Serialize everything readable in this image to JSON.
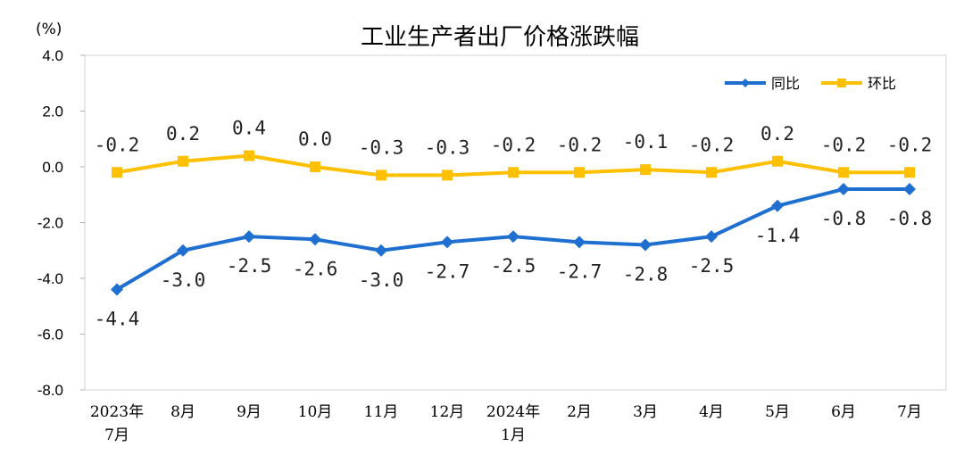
{
  "chart_data": {
    "type": "line",
    "title": "工业生产者出厂价格涨跌幅",
    "unit_label": "(%)",
    "categories": [
      [
        "2023年",
        "7月"
      ],
      [
        "8月"
      ],
      [
        "9月"
      ],
      [
        "10月"
      ],
      [
        "11月"
      ],
      [
        "12月"
      ],
      [
        "2024年",
        "1月"
      ],
      [
        "2月"
      ],
      [
        "3月"
      ],
      [
        "4月"
      ],
      [
        "5月"
      ],
      [
        "6月"
      ],
      [
        "7月"
      ]
    ],
    "ylim": [
      -8.0,
      4.0
    ],
    "yticks": [
      "4.0",
      "2.0",
      "0.0",
      "-2.0",
      "-4.0",
      "-6.0",
      "-8.0"
    ],
    "ytick_values": [
      4,
      2,
      0,
      -2,
      -4,
      -6,
      -8
    ],
    "grid": false,
    "legend_position": "top-right",
    "series": [
      {
        "name": "同比",
        "color": "#1f6fd1",
        "marker": "diamond",
        "label_position": "below",
        "values": [
          -4.4,
          -3.0,
          -2.5,
          -2.6,
          -3.0,
          -2.7,
          -2.5,
          -2.7,
          -2.8,
          -2.5,
          -1.4,
          -0.8,
          -0.8
        ],
        "labels": [
          "-4.4",
          "-3.0",
          "-2.5",
          "-2.6",
          "-3.0",
          "-2.7",
          "-2.5",
          "-2.7",
          "-2.8",
          "-2.5",
          "-1.4",
          "-0.8",
          "-0.8"
        ]
      },
      {
        "name": "环比",
        "color": "#ffc000",
        "marker": "square",
        "label_position": "above",
        "values": [
          -0.2,
          0.2,
          0.4,
          0.0,
          -0.3,
          -0.3,
          -0.2,
          -0.2,
          -0.1,
          -0.2,
          0.2,
          -0.2,
          -0.2
        ],
        "labels": [
          "-0.2",
          "0.2",
          "0.4",
          "0.0",
          "-0.3",
          "-0.3",
          "-0.2",
          "-0.2",
          "-0.1",
          "-0.2",
          "0.2",
          "-0.2",
          "-0.2"
        ]
      }
    ]
  }
}
